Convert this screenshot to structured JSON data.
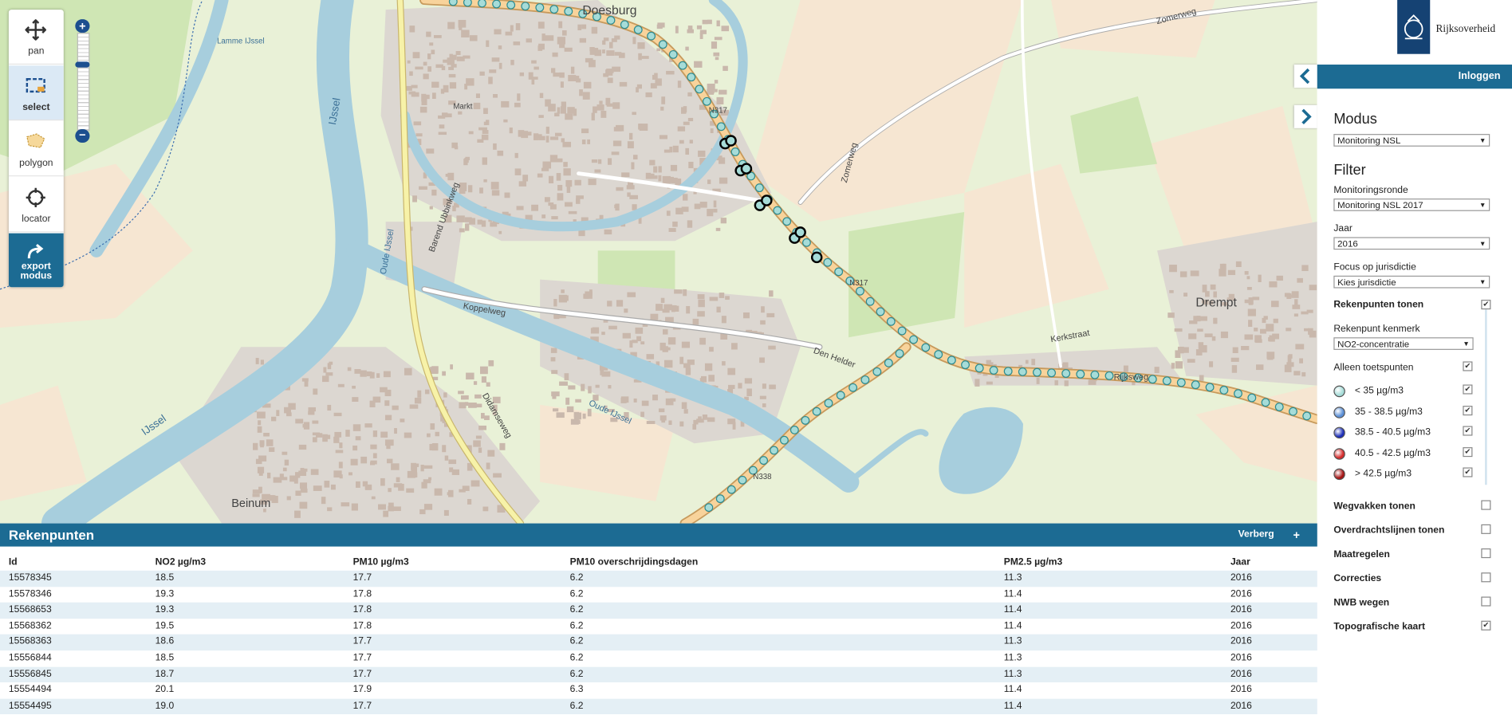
{
  "toolbar": {
    "tools": [
      "pan",
      "select",
      "polygon",
      "locator",
      "export modus"
    ]
  },
  "header": {
    "logo_text": "Rijksoverheid",
    "login": "Inloggen"
  },
  "map": {
    "labels": [
      "Doesburg",
      "Drempt",
      "Beinum",
      "N317",
      "N317",
      "N338",
      "IJssel",
      "IJssel",
      "Oude IJssel",
      "Lamme IJssel",
      "Oude IJssel",
      "Koppelweg",
      "Den Helder",
      "Zomerweg",
      "Kerkstraat",
      "Rijksweg",
      "Barend Ubbinkweg",
      "Didamseweg",
      "Zomerweg",
      "Markt"
    ]
  },
  "sidebar": {
    "modus_title": "Modus",
    "modus_value": "Monitoring NSL",
    "filter_title": "Filter",
    "fields": [
      {
        "label": "Monitoringsronde",
        "value": "Monitoring NSL 2017"
      },
      {
        "label": "Jaar",
        "value": "2016"
      },
      {
        "label": "Focus op jurisdictie",
        "value": "Kies jurisdictie"
      }
    ],
    "rekenpunten": {
      "label": "Rekenpunten tonen",
      "checked": true,
      "kenmerk_label": "Rekenpunt kenmerk",
      "kenmerk_value": "NO2-concentratie",
      "toetspunten_label": "Alleen toetspunten",
      "toetspunten_checked": true,
      "legend": [
        {
          "label": "< 35 µg/m3",
          "color": "#a6dcd8",
          "checked": true
        },
        {
          "label": "35 - 38.5 µg/m3",
          "color": "#5b8fd6",
          "checked": true
        },
        {
          "label": "38.5 - 40.5 µg/m3",
          "color": "#1d2fb8",
          "checked": true
        },
        {
          "label": "40.5 - 42.5 µg/m3",
          "color": "#d42a2a",
          "checked": true
        },
        {
          "label": "> 42.5 µg/m3",
          "color": "#a51414",
          "checked": true
        }
      ]
    },
    "layers": [
      {
        "label": "Wegvakken tonen",
        "checked": false
      },
      {
        "label": "Overdrachtslijnen tonen",
        "checked": false
      },
      {
        "label": "Maatregelen",
        "checked": false
      },
      {
        "label": "Correcties",
        "checked": false
      },
      {
        "label": "NWB wegen",
        "checked": false
      },
      {
        "label": "Topografische kaart",
        "checked": true
      }
    ]
  },
  "table": {
    "title": "Rekenpunten",
    "hide": "Verberg",
    "add": "+",
    "columns": [
      "Id",
      "NO2 µg/m3",
      "PM10 µg/m3",
      "PM10 overschrijdingsdagen",
      "PM2.5 µg/m3",
      "Jaar"
    ],
    "rows": [
      [
        "15578345",
        "18.5",
        "17.7",
        "6.2",
        "11.3",
        "2016"
      ],
      [
        "15578346",
        "19.3",
        "17.8",
        "6.2",
        "11.4",
        "2016"
      ],
      [
        "15568653",
        "19.3",
        "17.8",
        "6.2",
        "11.4",
        "2016"
      ],
      [
        "15568362",
        "19.5",
        "17.8",
        "6.2",
        "11.4",
        "2016"
      ],
      [
        "15568363",
        "18.6",
        "17.7",
        "6.2",
        "11.3",
        "2016"
      ],
      [
        "15556844",
        "18.5",
        "17.7",
        "6.2",
        "11.3",
        "2016"
      ],
      [
        "15556845",
        "18.7",
        "17.7",
        "6.2",
        "11.3",
        "2016"
      ],
      [
        "15554494",
        "20.1",
        "17.9",
        "6.3",
        "11.4",
        "2016"
      ],
      [
        "15554495",
        "19.0",
        "17.7",
        "6.2",
        "11.4",
        "2016"
      ]
    ]
  }
}
